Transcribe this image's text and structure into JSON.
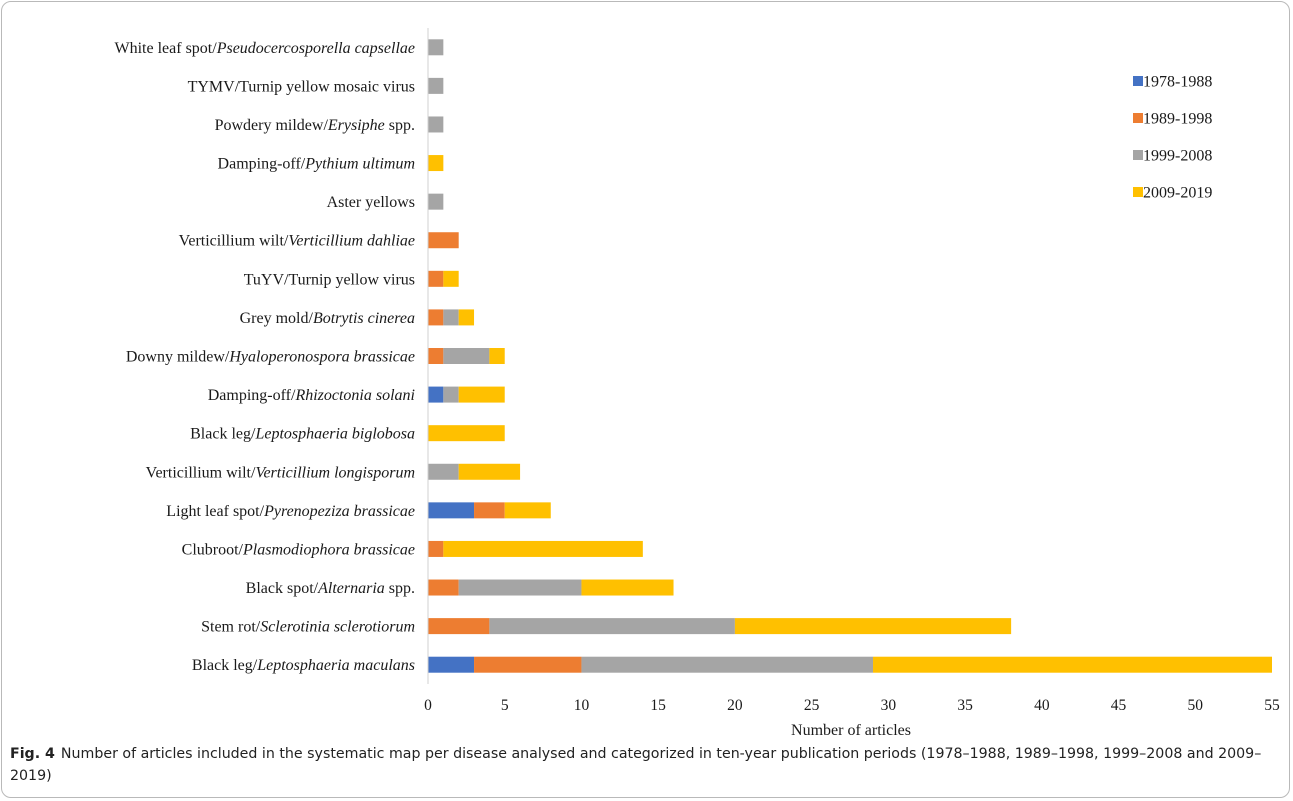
{
  "chart_data": {
    "type": "bar",
    "orientation": "horizontal",
    "stacked": true,
    "xlabel": "Number of articles",
    "ylabel": "",
    "xlim": [
      0,
      55
    ],
    "xticks": [
      0,
      5,
      10,
      15,
      20,
      25,
      30,
      35,
      40,
      45,
      50,
      55
    ],
    "grid": false,
    "legend_position": "right",
    "categories": [
      {
        "plain": "White leaf spot/",
        "italic": "Pseudocercosporella capsellae",
        "after": ""
      },
      {
        "plain": "TYMV/Turnip yellow mosaic virus",
        "italic": "",
        "after": ""
      },
      {
        "plain": "Powdery mildew/",
        "italic": "Erysiphe",
        "after": " spp."
      },
      {
        "plain": "Damping-off/",
        "italic": "Pythium ultimum",
        "after": ""
      },
      {
        "plain": "Aster yellows",
        "italic": "",
        "after": ""
      },
      {
        "plain": "Verticillium wilt/",
        "italic": "Verticillium dahliae",
        "after": ""
      },
      {
        "plain": "TuYV/Turnip yellow virus",
        "italic": "",
        "after": ""
      },
      {
        "plain": "Grey mold/",
        "italic": "Botrytis cinerea",
        "after": ""
      },
      {
        "plain": "Downy mildew/",
        "italic": "Hyaloperonospora brassicae",
        "after": ""
      },
      {
        "plain": "Damping-off/",
        "italic": "Rhizoctonia solani",
        "after": ""
      },
      {
        "plain": "Black leg/",
        "italic": "Leptosphaeria biglobosa",
        "after": ""
      },
      {
        "plain": "Verticillium wilt/",
        "italic": "Verticillium longisporum",
        "after": ""
      },
      {
        "plain": "Light leaf spot/",
        "italic": "Pyrenopeziza brassicae",
        "after": ""
      },
      {
        "plain": "Clubroot/",
        "italic": "Plasmodiophora brassicae",
        "after": ""
      },
      {
        "plain": "Black spot/",
        "italic": "Alternaria",
        "after": " spp."
      },
      {
        "plain": "Stem rot/",
        "italic": "Sclerotinia sclerotiorum",
        "after": ""
      },
      {
        "plain": "Black leg/",
        "italic": "Leptosphaeria maculans",
        "after": ""
      }
    ],
    "series": [
      {
        "name": "1978-1988",
        "color": "#4472c4",
        "values": [
          0,
          0,
          0,
          0,
          0,
          0,
          0,
          0,
          0,
          1,
          0,
          0,
          3,
          0,
          0,
          0,
          3
        ]
      },
      {
        "name": "1989-1998",
        "color": "#ed7d31",
        "values": [
          0,
          0,
          0,
          0,
          0,
          2,
          1,
          1,
          1,
          0,
          0,
          0,
          2,
          1,
          2,
          4,
          7
        ]
      },
      {
        "name": "1999-2008",
        "color": "#a5a5a5",
        "values": [
          1,
          1,
          1,
          0,
          1,
          0,
          0,
          1,
          3,
          1,
          0,
          2,
          0,
          0,
          8,
          16,
          19
        ]
      },
      {
        "name": "2009-2019",
        "color": "#ffc000",
        "values": [
          0,
          0,
          0,
          1,
          0,
          0,
          1,
          1,
          1,
          3,
          5,
          4,
          3,
          13,
          6,
          18,
          26
        ]
      }
    ]
  },
  "caption": {
    "label": "Fig. 4",
    "text": "Number of articles included in the systematic map per disease analysed and categorized in ten-year publication periods (1978–1988, 1989–1998, 1999–2008 and 2009–2019)"
  }
}
